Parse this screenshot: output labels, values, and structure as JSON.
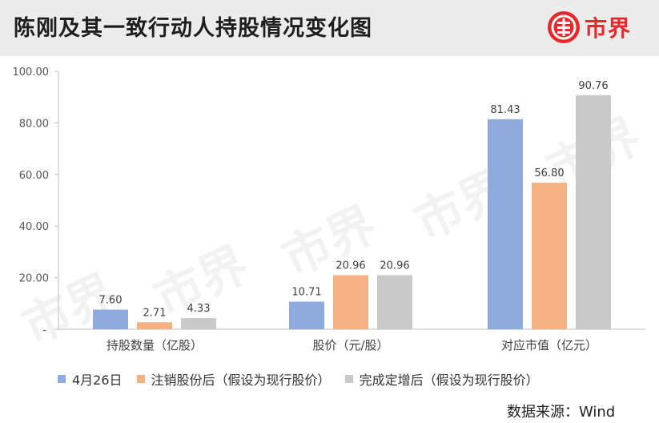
{
  "header": {
    "title": "陈刚及其一致行动人持股情况变化图",
    "logo_text": "市界",
    "logo_icon": "shijie-logo-icon",
    "brand_color": "#e8282b"
  },
  "watermark_text": "市界",
  "chart_data": {
    "type": "bar",
    "categories": [
      "持股数量（亿股）",
      "股价（元/股）",
      "对应市值（亿元）"
    ],
    "series": [
      {
        "name": "4月26日",
        "color": "#8faadc",
        "values": [
          7.6,
          10.71,
          81.43
        ],
        "labels": [
          "7.60",
          "10.71",
          "81.43"
        ]
      },
      {
        "name": "注销股份后（假设为现行股价）",
        "color": "#f4b183",
        "values": [
          2.71,
          20.96,
          56.8
        ],
        "labels": [
          "2.71",
          "20.96",
          "56.80"
        ]
      },
      {
        "name": "完成定增后（假设为现行股价）",
        "color": "#c9c9c9",
        "values": [
          4.33,
          20.96,
          90.76
        ],
        "labels": [
          "4.33",
          "20.96",
          "90.76"
        ]
      }
    ],
    "y_ticks": [
      "-",
      "20.00",
      "40.00",
      "60.00",
      "80.00",
      "100.00"
    ],
    "ylim": [
      0,
      100
    ],
    "grid": false,
    "legend_position": "bottom"
  },
  "source": "数据来源：Wind"
}
